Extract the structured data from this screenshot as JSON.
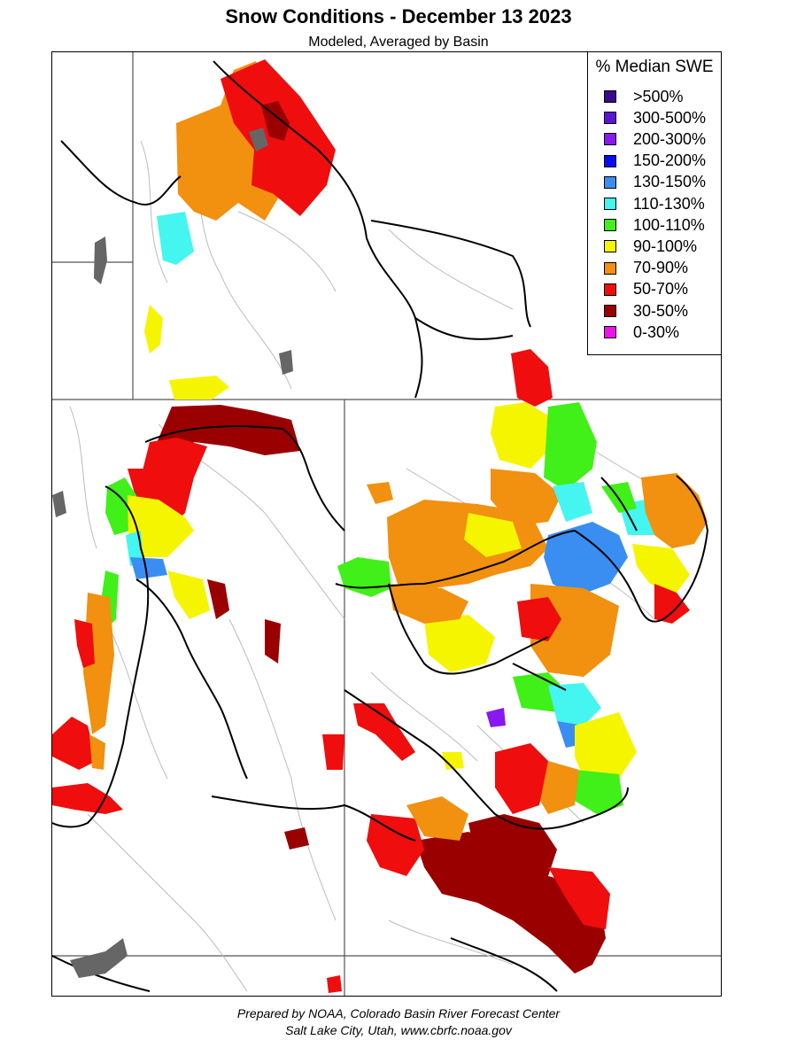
{
  "title": "Snow Conditions - December 13 2023",
  "subtitle": "Modeled, Averaged by Basin",
  "legend": {
    "title": "% Median SWE",
    "items": [
      {
        "label": ">500%",
        "color": "#3a0a8c"
      },
      {
        "label": "300-500%",
        "color": "#5b14d6"
      },
      {
        "label": "200-300%",
        "color": "#8a18f0"
      },
      {
        "label": "150-200%",
        "color": "#0a0af5"
      },
      {
        "label": "130-150%",
        "color": "#3a8ef2"
      },
      {
        "label": "110-130%",
        "color": "#45f5f0"
      },
      {
        "label": "100-110%",
        "color": "#40f018"
      },
      {
        "label": "90-100%",
        "color": "#f5f500"
      },
      {
        "label": "70-90%",
        "color": "#f2900f"
      },
      {
        "label": "50-70%",
        "color": "#f00d0d"
      },
      {
        "label": "30-50%",
        "color": "#9a0000"
      },
      {
        "label": "0-30%",
        "color": "#f010f0"
      }
    ]
  },
  "credits": {
    "line1": "Prepared by NOAA, Colorado Basin River Forecast Center",
    "line2": "Salt Lake City, Utah, www.cbrfc.noaa.gov"
  },
  "colors": {
    "orange": "#f2900f",
    "red": "#f00d0d",
    "dark_red": "#9a0000",
    "yellow": "#f5f500",
    "green": "#40f018",
    "cyan": "#45f5f0",
    "blue": "#3a8ef2",
    "purple": "#8a18f0",
    "lake": "#666666"
  }
}
